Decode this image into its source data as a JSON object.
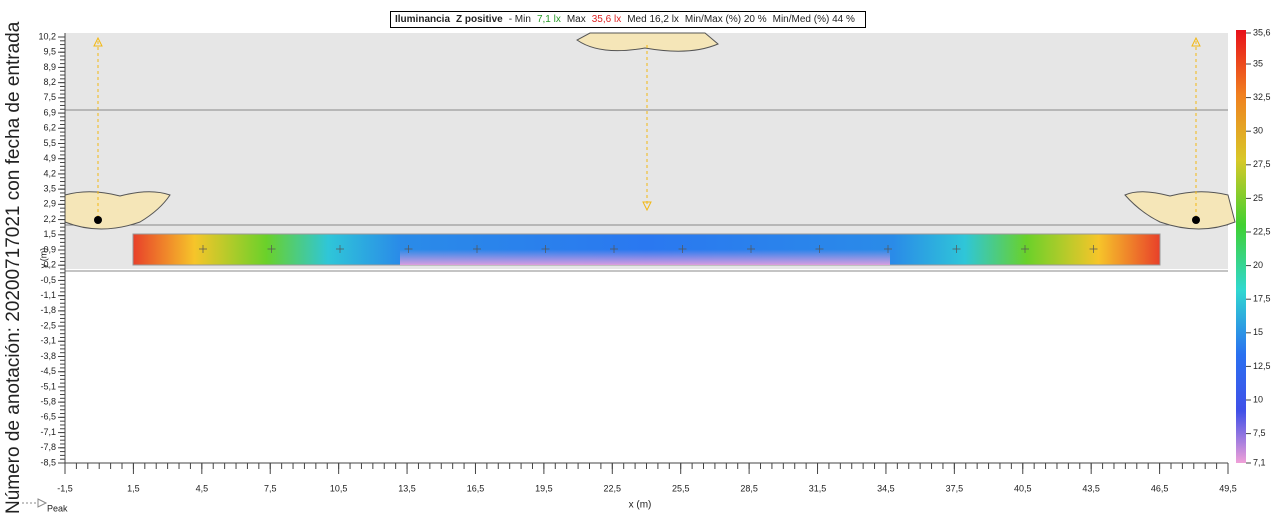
{
  "header": {
    "quantity": "Iluminancia",
    "surface": "Z positive",
    "min_label": "- Min",
    "min_value": "7,1 lx",
    "max_label": "Max",
    "max_value": "35,6 lx",
    "med": "Med 16,2 lx",
    "min_max": "Min/Max (%) 20 %",
    "min_med": "Min/Med (%) 44 %"
  },
  "side_note": "Número de anotación: 20200717021 con fecha de entrada",
  "y_axis": {
    "title": "y (m)",
    "labels": [
      "10,2",
      "9,5",
      "8,9",
      "8,2",
      "7,5",
      "6,9",
      "6,2",
      "5,5",
      "4,9",
      "4,2",
      "3,5",
      "2,9",
      "2,2",
      "1,5",
      "0,9",
      "0,2",
      "-0,5",
      "-1,1",
      "-1,8",
      "-2,5",
      "-3,1",
      "-3,8",
      "-4,5",
      "-5,1",
      "-5,8",
      "-6,5",
      "-7,1",
      "-7,8",
      "-8,5"
    ]
  },
  "x_axis": {
    "title": "x (m)",
    "labels": [
      "-1,5",
      "1,5",
      "4,5",
      "7,5",
      "10,5",
      "13,5",
      "16,5",
      "19,5",
      "22,5",
      "25,5",
      "28,5",
      "31,5",
      "34,5",
      "37,5",
      "40,5",
      "43,5",
      "46,5",
      "49,5"
    ]
  },
  "colorbar": {
    "labels": [
      "35,6",
      "35",
      "32,5",
      "30",
      "27,5",
      "25",
      "22,5",
      "20",
      "17,5",
      "15",
      "12,5",
      "10",
      "7,5",
      "7,1"
    ]
  },
  "peak": "Peak"
}
